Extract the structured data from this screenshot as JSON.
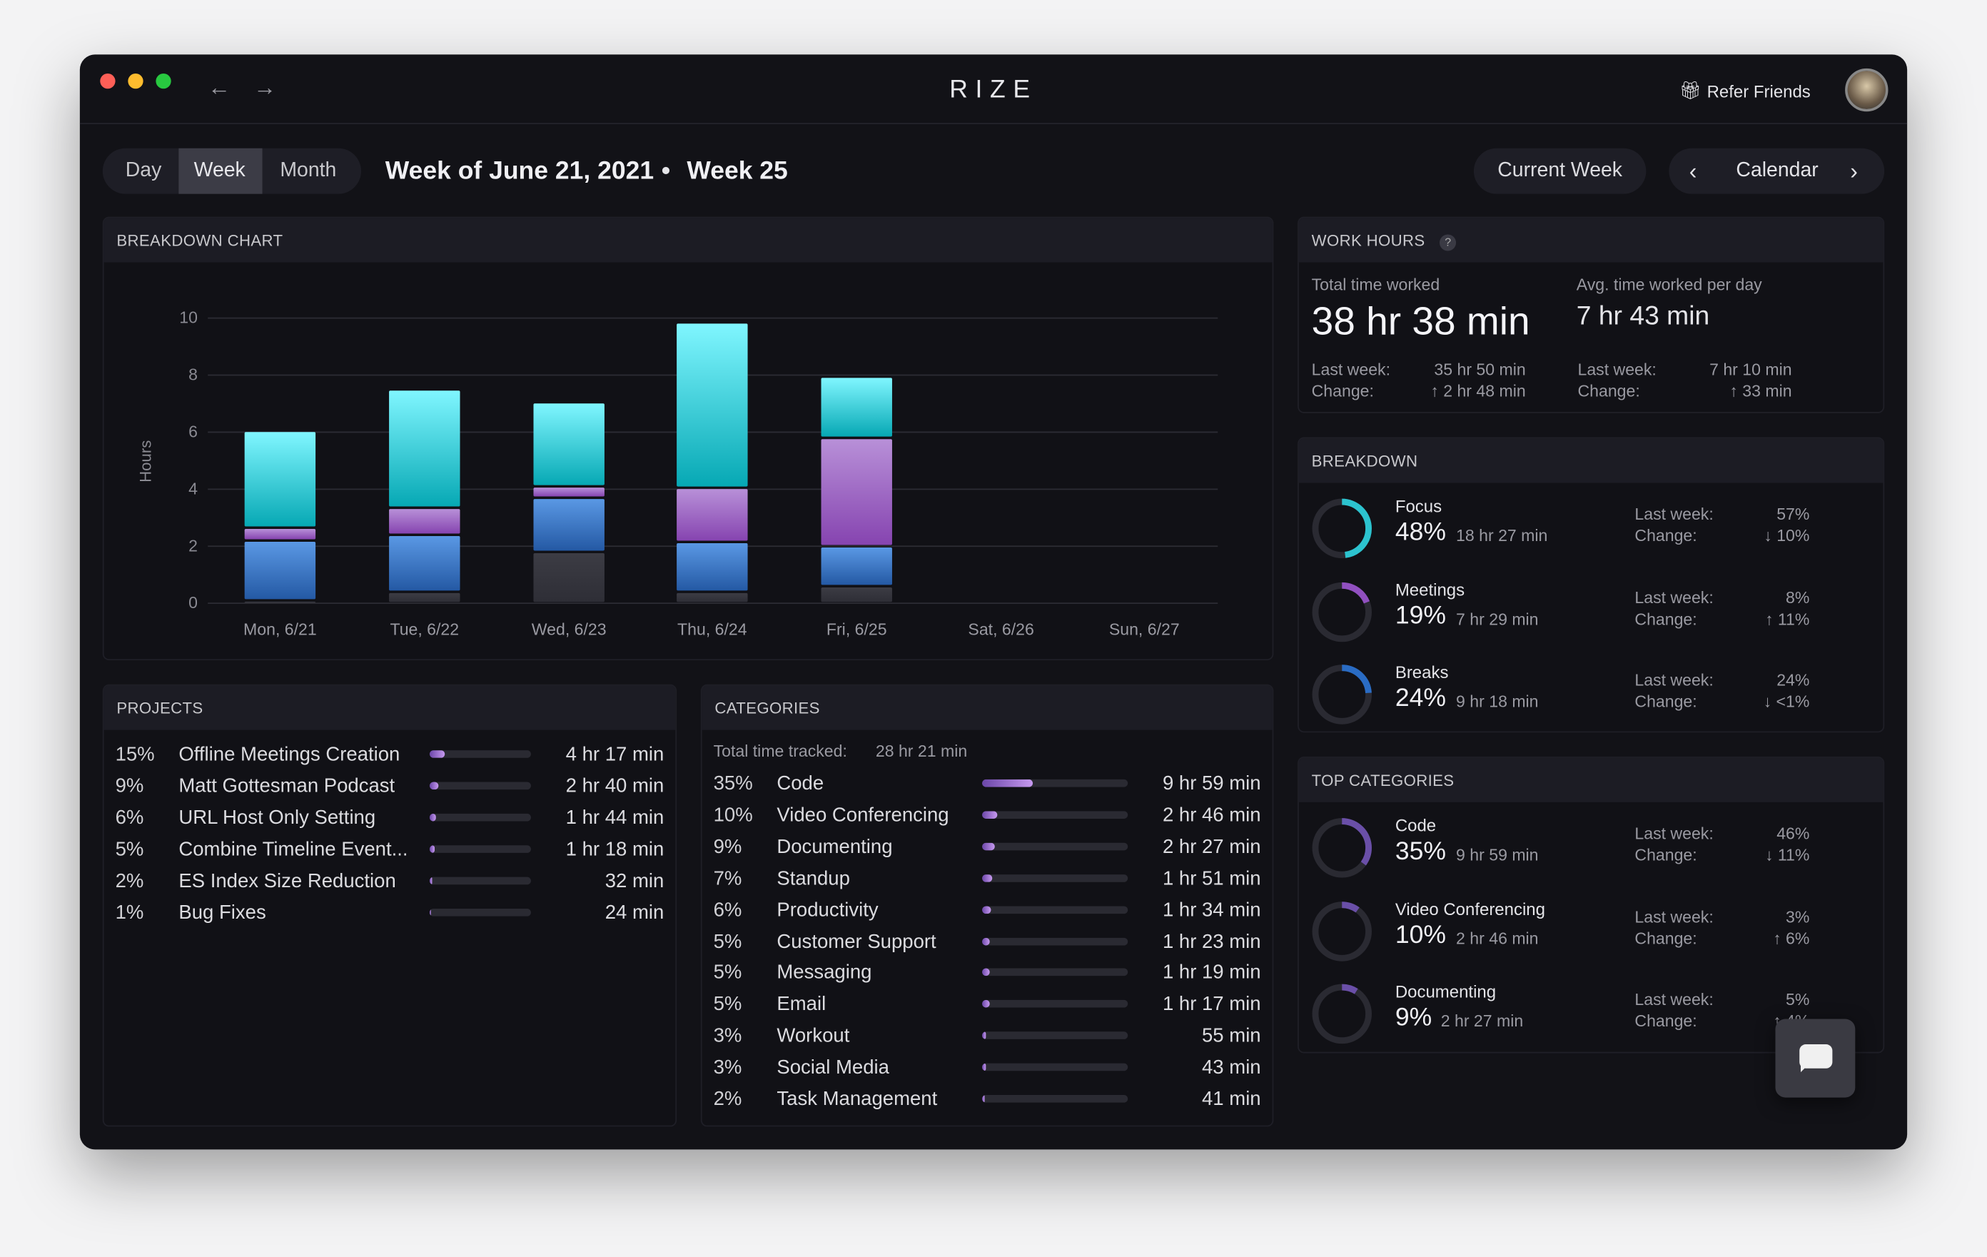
{
  "app": {
    "title": "RIZE",
    "refer_label": "Refer Friends",
    "back": "←",
    "forward": "→"
  },
  "toolbar": {
    "tabs": [
      "Day",
      "Week",
      "Month"
    ],
    "selected": "Week",
    "title": "Week of June 21, 2021",
    "separator": "•",
    "week_label": "Week 25",
    "current_week": "Current Week",
    "calendar": "Calendar"
  },
  "chart_panel": {
    "title": "BREAKDOWN CHART"
  },
  "chart_data": {
    "type": "bar",
    "stacked": true,
    "ylabel": "Hours",
    "ylim": [
      0,
      10
    ],
    "yticks": [
      0,
      2,
      4,
      6,
      8,
      10
    ],
    "grid": true,
    "categories": [
      "Mon, 6/21",
      "Tue, 6/22",
      "Wed, 6/23",
      "Thu, 6/24",
      "Fri, 6/25",
      "Sat, 6/26",
      "Sun, 6/27"
    ],
    "series": [
      {
        "color": "#3a3a42",
        "values": [
          0.1,
          0.4,
          1.8,
          0.4,
          0.6,
          0,
          0
        ]
      },
      {
        "color": "#4a88d8",
        "values": [
          2.1,
          2.0,
          1.9,
          1.75,
          1.4,
          0,
          0
        ]
      },
      {
        "color": "#a070c8",
        "values": [
          0.45,
          0.95,
          0.4,
          1.9,
          3.8,
          0,
          0
        ]
      },
      {
        "color": "#30c8d4",
        "values": [
          3.4,
          4.15,
          2.95,
          5.8,
          2.15,
          0,
          0
        ]
      }
    ]
  },
  "projects": {
    "title": "PROJECTS",
    "items": [
      {
        "pct": "15%",
        "name": "Offline Meetings Creation",
        "time": "4 hr 17 min",
        "fill": 15
      },
      {
        "pct": "9%",
        "name": "Matt Gottesman Podcast",
        "time": "2 hr 40 min",
        "fill": 9
      },
      {
        "pct": "6%",
        "name": "URL Host Only Setting",
        "time": "1 hr 44 min",
        "fill": 6
      },
      {
        "pct": "5%",
        "name": "Combine Timeline Event...",
        "time": "1 hr 18 min",
        "fill": 5
      },
      {
        "pct": "2%",
        "name": "ES Index Size Reduction",
        "time": "32 min",
        "fill": 2
      },
      {
        "pct": "1%",
        "name": "Bug Fixes",
        "time": "24 min",
        "fill": 1
      }
    ]
  },
  "categories": {
    "title": "CATEGORIES",
    "total_label": "Total time tracked:",
    "total_value": "28 hr 21 min",
    "items": [
      {
        "pct": "35%",
        "name": "Code",
        "time": "9 hr 59 min",
        "fill": 35
      },
      {
        "pct": "10%",
        "name": "Video Conferencing",
        "time": "2 hr 46 min",
        "fill": 10
      },
      {
        "pct": "9%",
        "name": "Documenting",
        "time": "2 hr 27 min",
        "fill": 9
      },
      {
        "pct": "7%",
        "name": "Standup",
        "time": "1 hr 51 min",
        "fill": 7
      },
      {
        "pct": "6%",
        "name": "Productivity",
        "time": "1 hr 34 min",
        "fill": 6
      },
      {
        "pct": "5%",
        "name": "Customer Support",
        "time": "1 hr 23 min",
        "fill": 5
      },
      {
        "pct": "5%",
        "name": "Messaging",
        "time": "1 hr 19 min",
        "fill": 5
      },
      {
        "pct": "5%",
        "name": "Email",
        "time": "1 hr 17 min",
        "fill": 5
      },
      {
        "pct": "3%",
        "name": "Workout",
        "time": "55 min",
        "fill": 3
      },
      {
        "pct": "3%",
        "name": "Social Media",
        "time": "43 min",
        "fill": 3
      },
      {
        "pct": "2%",
        "name": "Task Management",
        "time": "41 min",
        "fill": 2
      }
    ]
  },
  "work_hours": {
    "title": "WORK HOURS",
    "help": "?",
    "total_label": "Total time worked",
    "total_value": "38 hr 38 min",
    "avg_label": "Avg. time worked per day",
    "avg_value": "7 hr 43 min",
    "last_week_label": "Last week:",
    "change_label": "Change:",
    "total_last": "35 hr 50 min",
    "total_change": "↑ 2 hr 48 min",
    "avg_last": "7 hr 10 min",
    "avg_change": "↑ 33 min"
  },
  "breakdown": {
    "title": "BREAKDOWN",
    "items": [
      {
        "name": "Focus",
        "pct": "48%",
        "time": "18 hr 27 min",
        "last": "57%",
        "change": "↓ 10%",
        "value": 48,
        "color": "#2cc3cf"
      },
      {
        "name": "Meetings",
        "pct": "19%",
        "time": "7 hr 29 min",
        "last": "8%",
        "change": "↑ 11%",
        "value": 19,
        "color": "#9150c0"
      },
      {
        "name": "Breaks",
        "pct": "24%",
        "time": "9 hr 18 min",
        "last": "24%",
        "change": "↓ <1%",
        "value": 24,
        "color": "#2a6cc4"
      }
    ]
  },
  "top_categories": {
    "title": "TOP CATEGORIES",
    "items": [
      {
        "name": "Code",
        "pct": "35%",
        "time": "9 hr 59 min",
        "last": "46%",
        "change": "↓ 11%",
        "value": 35,
        "color": "#6a4fa8"
      },
      {
        "name": "Video Conferencing",
        "pct": "10%",
        "time": "2 hr 46 min",
        "last": "3%",
        "change": "↑ 6%",
        "value": 10,
        "color": "#6a4fa8"
      },
      {
        "name": "Documenting",
        "pct": "9%",
        "time": "2 hr 27 min",
        "last": "5%",
        "change": "↑ 4%",
        "value": 9,
        "color": "#6a4fa8"
      }
    ]
  }
}
